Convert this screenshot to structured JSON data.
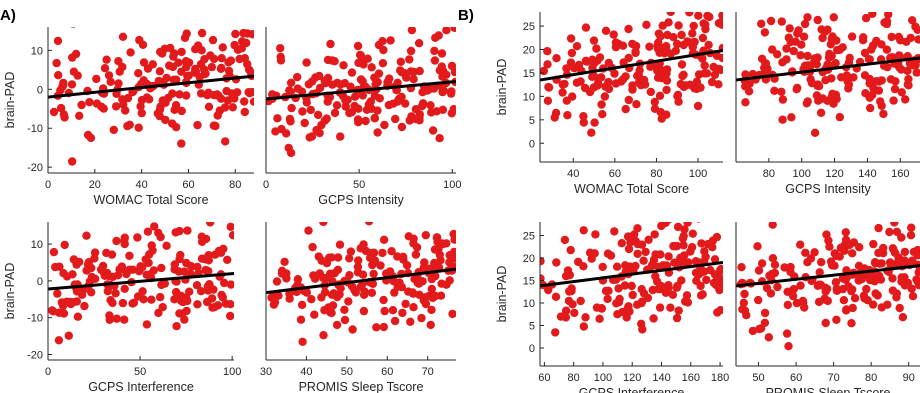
{
  "panel_labels": {
    "a": "A)",
    "b": "B)"
  },
  "colors": {
    "points": "#e31a1c",
    "fit_line": "#000000",
    "axis": "#262626"
  },
  "chart_data": [
    {
      "type": "scatter",
      "group": "A",
      "xlabel": "WOMAC Total Score",
      "ylabel": "brain-PAD",
      "xlim": [
        0,
        88
      ],
      "ylim": [
        -21.5,
        16
      ],
      "xticks": [
        0,
        20,
        40,
        60,
        80
      ],
      "yticks": [
        -20,
        -10,
        0,
        10
      ],
      "fit": [
        [
          0,
          -2
        ],
        [
          88,
          3.4
        ]
      ],
      "seed": 11
    },
    {
      "type": "scatter",
      "group": "A",
      "xlabel": "GCPS Intensity",
      "ylabel": "",
      "xlim": [
        0,
        102
      ],
      "ylim": [
        -21.5,
        16
      ],
      "xticks": [
        0,
        50,
        100
      ],
      "yticks": [],
      "fit": [
        [
          0,
          -2.5
        ],
        [
          102,
          2
        ]
      ],
      "seed": 23
    },
    {
      "type": "scatter",
      "group": "A",
      "xlabel": "GCPS Interference",
      "ylabel": "brain-PAD",
      "xlim": [
        0,
        101
      ],
      "ylim": [
        -21.5,
        16
      ],
      "xticks": [
        0,
        50,
        100
      ],
      "yticks": [
        -20,
        -10,
        0,
        10
      ],
      "fit": [
        [
          0,
          -2.2
        ],
        [
          101,
          2
        ]
      ],
      "seed": 37
    },
    {
      "type": "scatter",
      "group": "A",
      "xlabel": "PROMIS Sleep Tscore",
      "ylabel": "",
      "xlim": [
        30,
        77
      ],
      "ylim": [
        -21.5,
        16
      ],
      "xticks": [
        30,
        40,
        50,
        60,
        70
      ],
      "yticks": [],
      "fit": [
        [
          30,
          -3.2
        ],
        [
          77,
          3.2
        ]
      ],
      "seed": 41
    },
    {
      "type": "scatter",
      "group": "B",
      "xlabel": "WOMAC Total Score",
      "ylabel": "brain-PAD",
      "xlim": [
        24,
        112
      ],
      "ylim": [
        -4,
        28
      ],
      "xticks": [
        40,
        60,
        80,
        100
      ],
      "yticks": [
        0,
        5,
        10,
        15,
        20,
        25
      ],
      "fit": [
        [
          24,
          13.5
        ],
        [
          112,
          19.8
        ]
      ],
      "seed": 53
    },
    {
      "type": "scatter",
      "group": "B",
      "xlabel": "GCPS Intensity",
      "ylabel": "",
      "xlim": [
        60,
        172
      ],
      "ylim": [
        -4,
        28
      ],
      "xticks": [
        80,
        100,
        120,
        140,
        160
      ],
      "yticks": [],
      "fit": [
        [
          60,
          13.5
        ],
        [
          172,
          18.2
        ]
      ],
      "seed": 61
    },
    {
      "type": "scatter",
      "group": "B",
      "xlabel": "GCPS Interference",
      "ylabel": "brain-PAD",
      "xlim": [
        57,
        182
      ],
      "ylim": [
        -4,
        28
      ],
      "xticks": [
        60,
        80,
        100,
        120,
        140,
        160,
        180
      ],
      "yticks": [
        0,
        5,
        10,
        15,
        20,
        25
      ],
      "fit": [
        [
          57,
          13.8
        ],
        [
          182,
          19
        ]
      ],
      "seed": 71
    },
    {
      "type": "scatter",
      "group": "B",
      "xlabel": "PROMIS Sleep Tscore",
      "ylabel": "",
      "xlim": [
        44,
        93
      ],
      "ylim": [
        -4,
        28
      ],
      "xticks": [
        50,
        60,
        70,
        80,
        90
      ],
      "yticks": [],
      "fit": [
        [
          44,
          13.8
        ],
        [
          93,
          18.3
        ]
      ],
      "seed": 83
    }
  ]
}
